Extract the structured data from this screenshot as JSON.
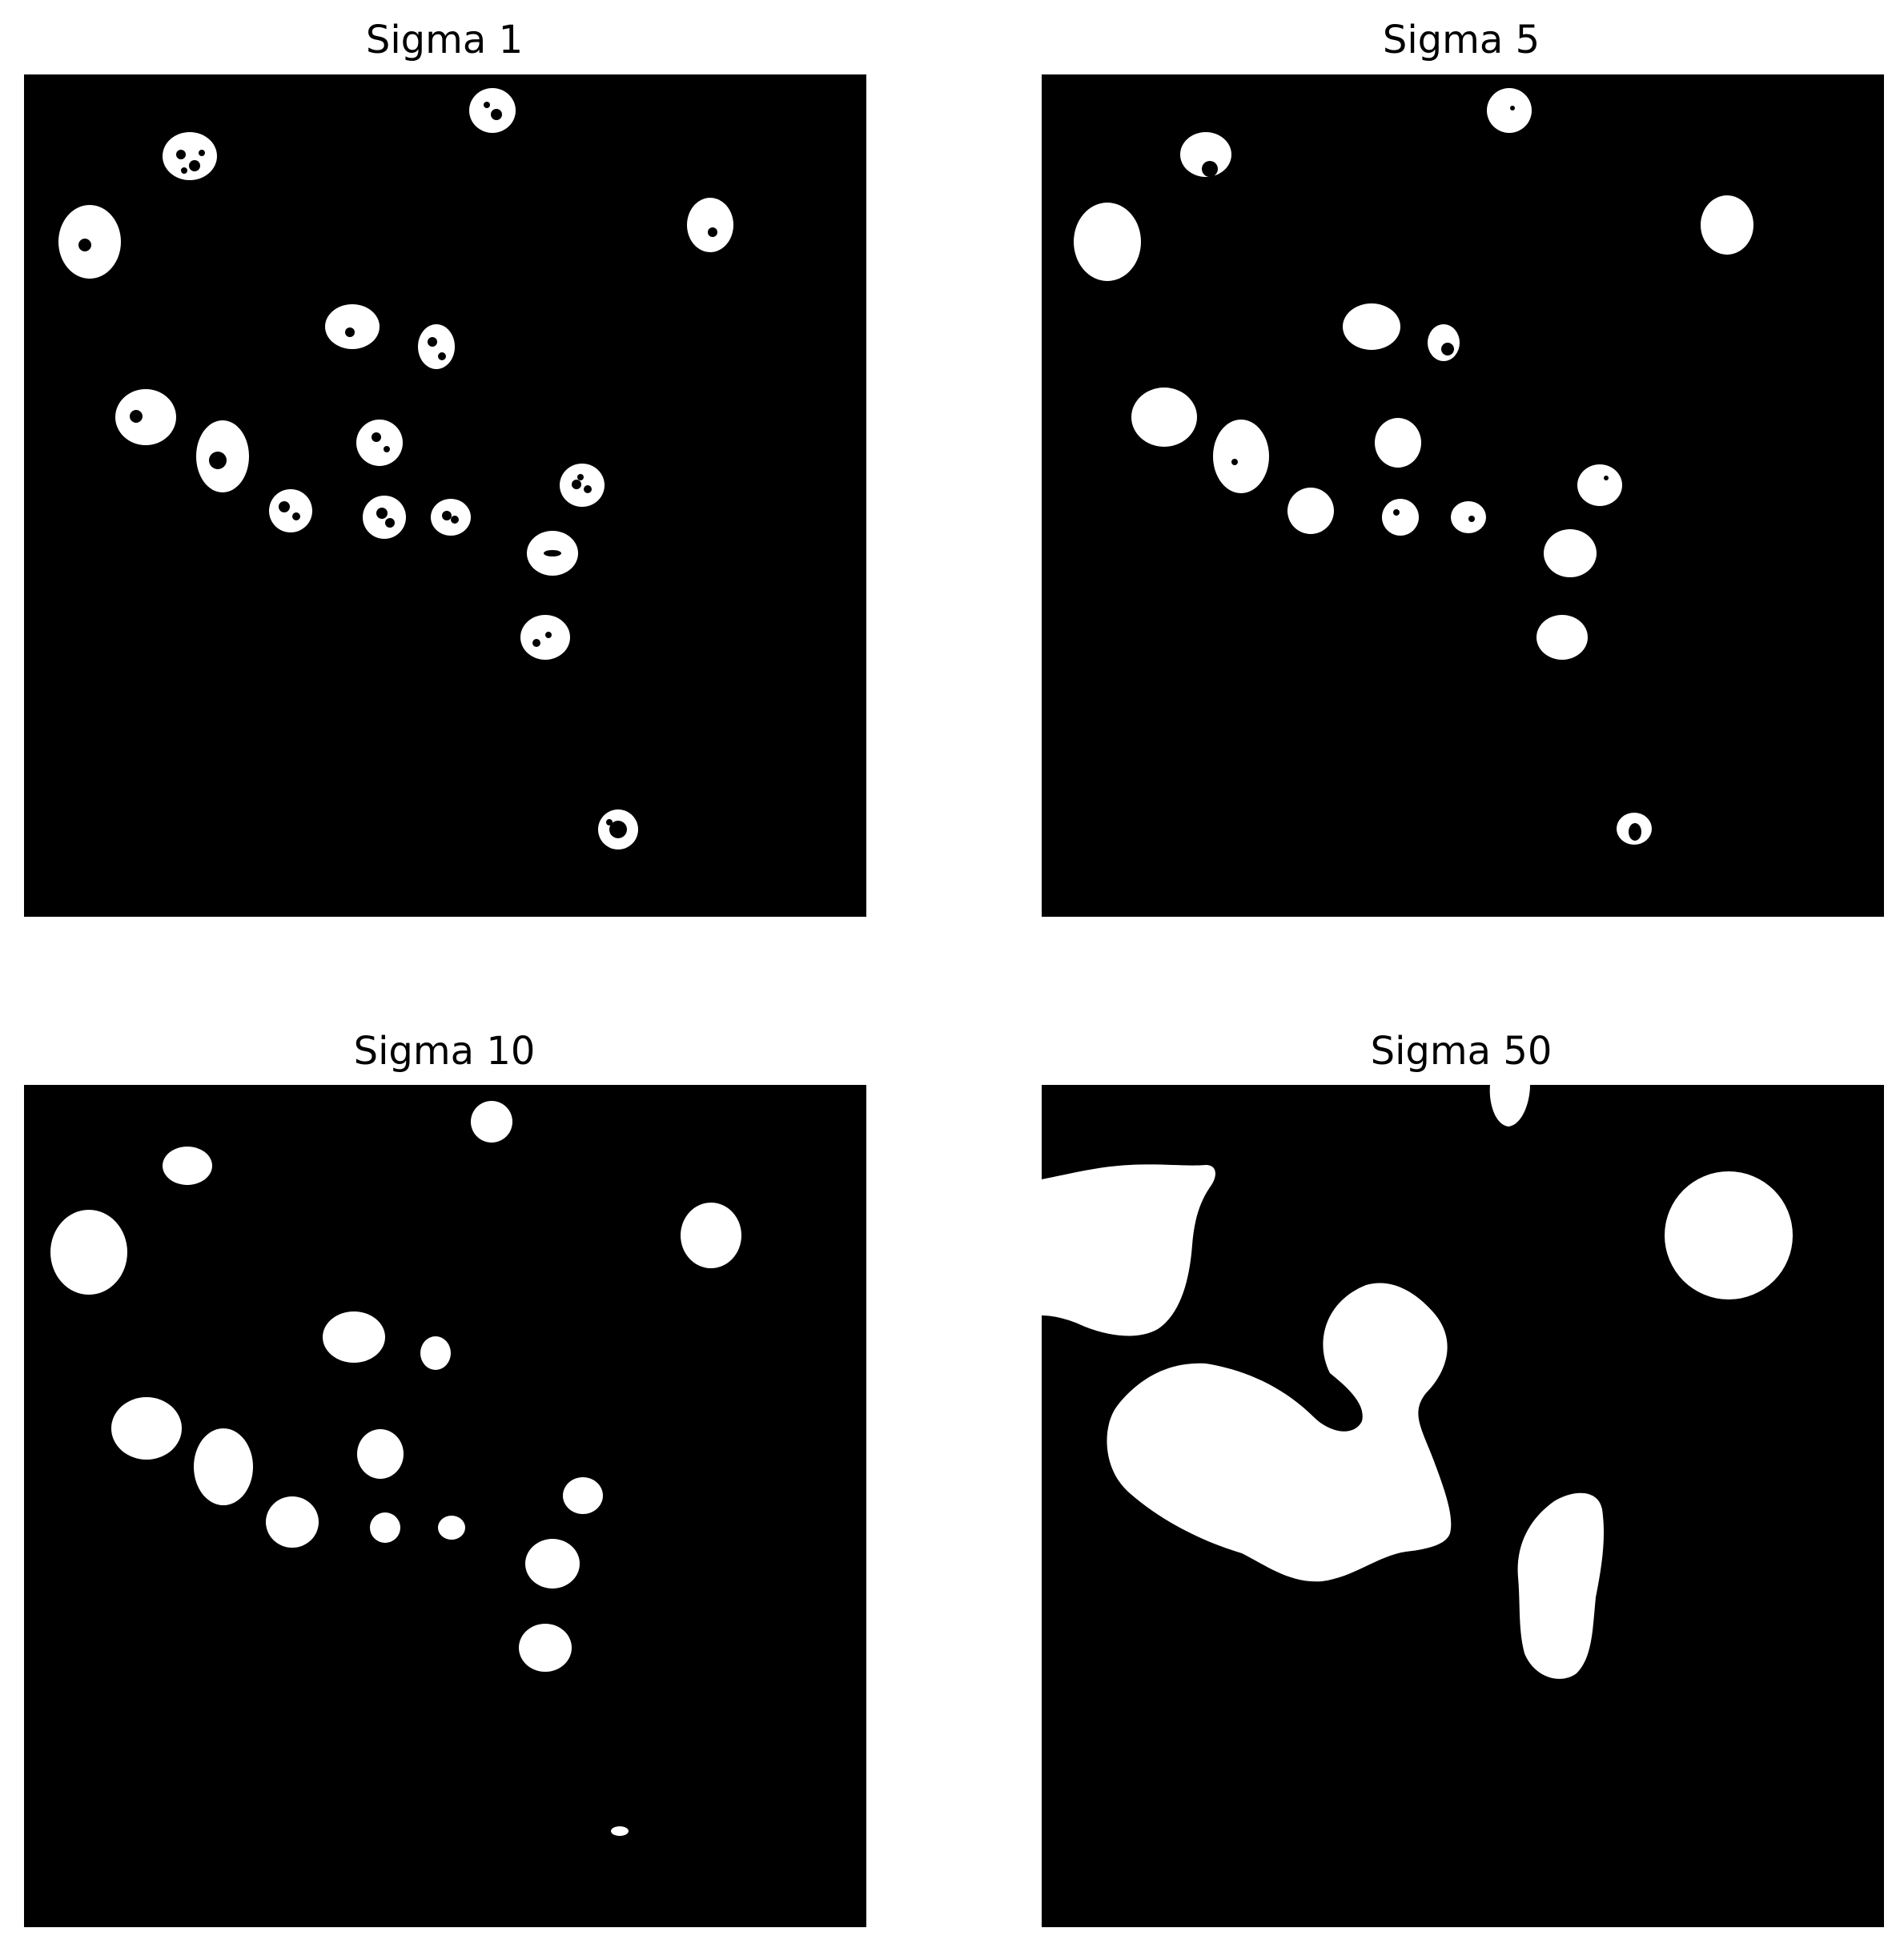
{
  "panels": [
    {
      "title": "Sigma 1"
    },
    {
      "title": "Sigma 5"
    },
    {
      "title": "Sigma 10"
    },
    {
      "title": "Sigma 50"
    }
  ],
  "colors": {
    "background": "#000000",
    "foreground": "#ffffff"
  }
}
